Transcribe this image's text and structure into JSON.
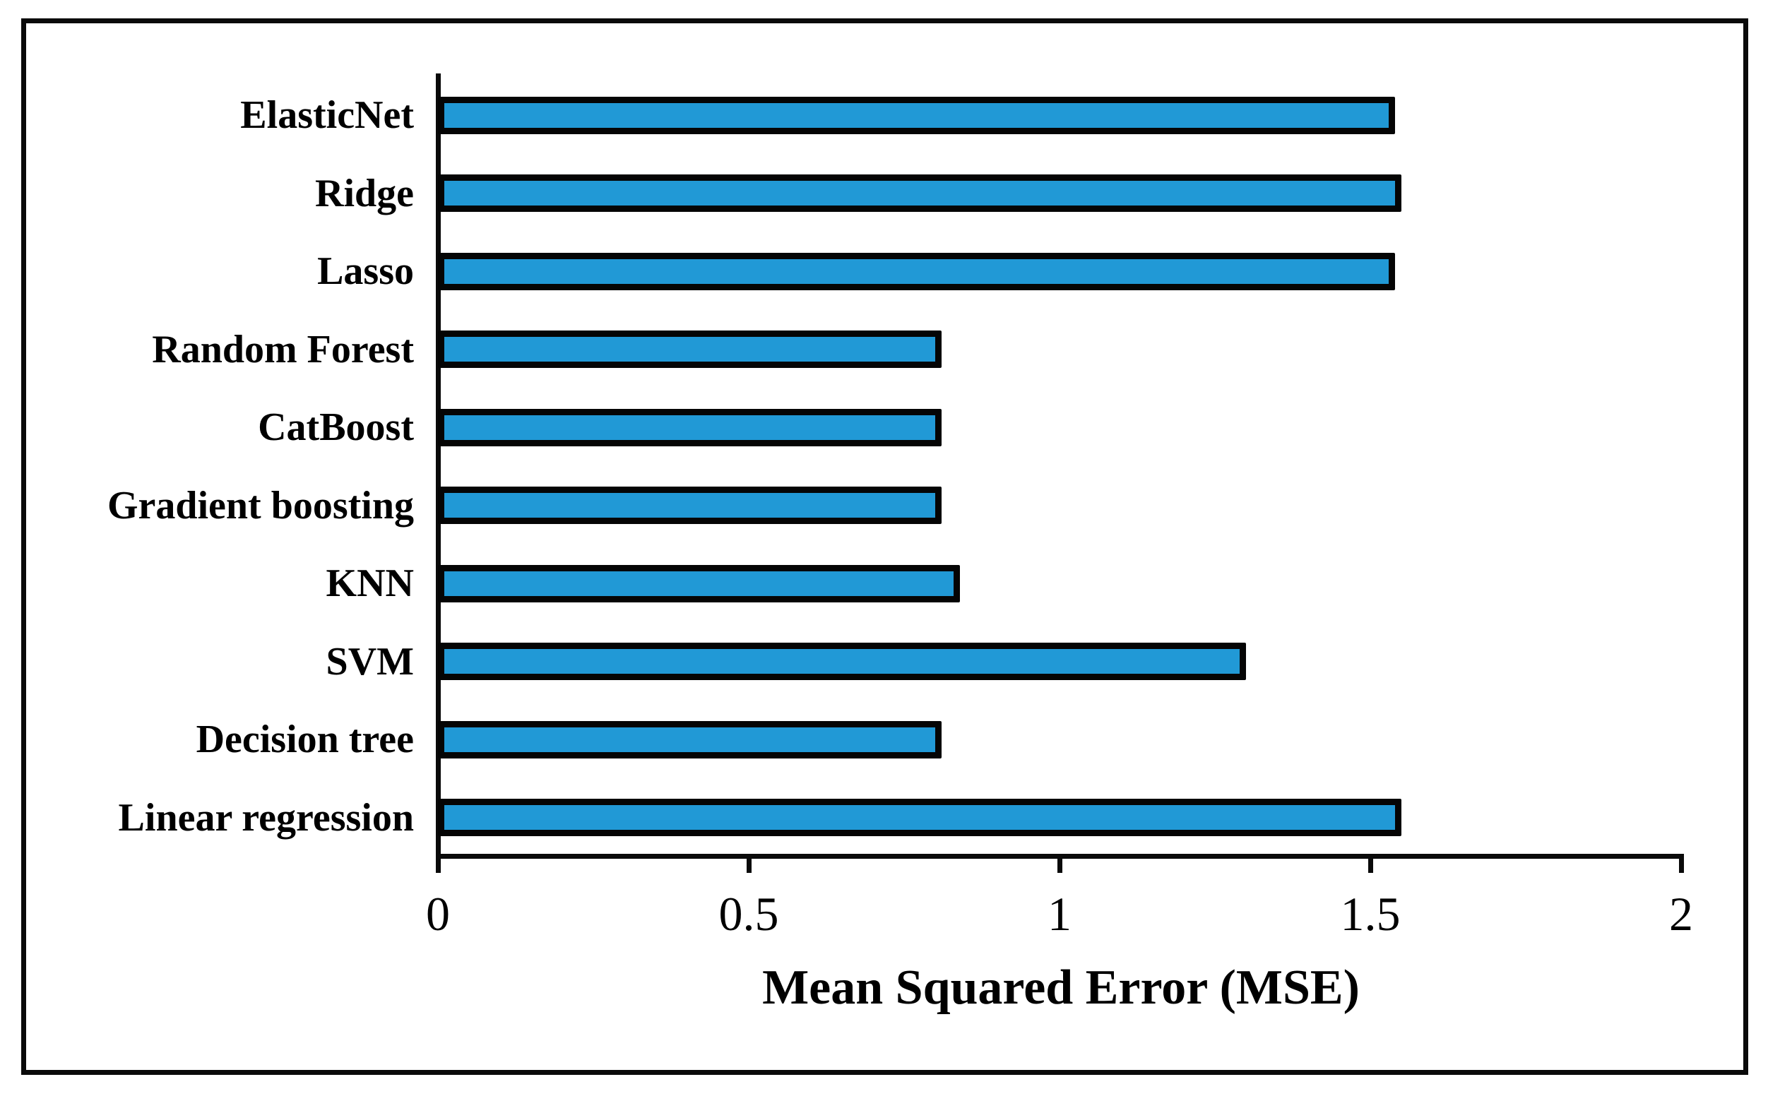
{
  "chart_data": {
    "type": "bar",
    "orientation": "horizontal",
    "title": "",
    "xlabel": "Mean Squared Error (MSE)",
    "ylabel": "",
    "categories": [
      "ElasticNet",
      "Ridge",
      "Lasso",
      "Random Forest",
      "CatBoost",
      "Gradient boosting",
      "KNN",
      "SVM",
      "Decision tree",
      "Linear regression"
    ],
    "values": [
      1.54,
      1.55,
      1.54,
      0.81,
      0.81,
      0.81,
      0.84,
      1.3,
      0.81,
      1.55
    ],
    "xlim": [
      0,
      2
    ],
    "xtick_labels": [
      "0",
      "0.5",
      "1",
      "1.5",
      "2"
    ],
    "xtick_values": [
      0,
      0.5,
      1,
      1.5,
      2
    ],
    "grid": false,
    "legend": false,
    "bar_fill_color": "#2199D6",
    "bar_border_color": "#050505",
    "frame_color": "#0a0a0a",
    "background_color": "#ffffff"
  }
}
